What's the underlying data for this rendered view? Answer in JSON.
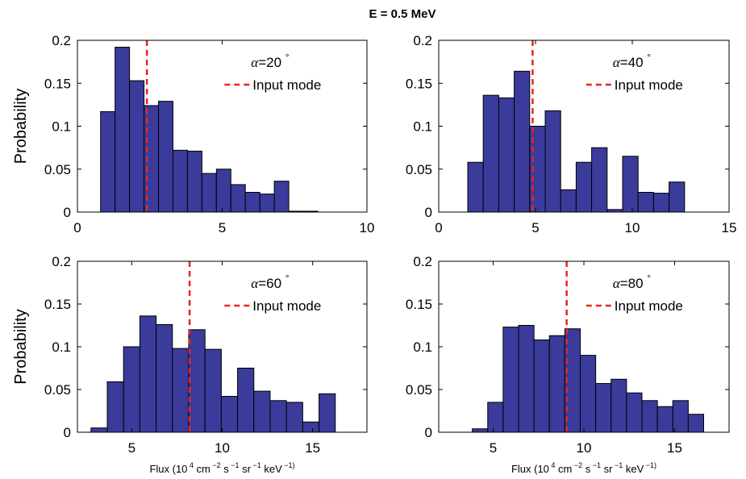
{
  "figure_title": "E = 0.5 MeV",
  "colors": {
    "bar_fill": "#3b3b9b",
    "bar_edge": "#000000",
    "mode_line": "#e8251f"
  },
  "chart_data": [
    {
      "type": "bar",
      "panel": "top-left",
      "ylabel": "Probability",
      "xlabel": "",
      "xlim": [
        0,
        10
      ],
      "ylim": [
        0,
        0.2
      ],
      "xticks": [
        "0",
        "5",
        "10"
      ],
      "yticks": [
        "0",
        "0.05",
        "0.1",
        "0.15",
        "0.2"
      ],
      "bin_edges": [
        0.8,
        1.3,
        1.8,
        2.3,
        2.8,
        3.3,
        3.8,
        4.3,
        4.8,
        5.3,
        5.8,
        6.3,
        6.8,
        7.3,
        7.8,
        8.3
      ],
      "values": [
        0.117,
        0.192,
        0.153,
        0.124,
        0.129,
        0.072,
        0.071,
        0.045,
        0.05,
        0.032,
        0.023,
        0.021,
        0.036,
        0.001,
        0.001
      ],
      "mode_x": 2.4,
      "legend_alpha": "20",
      "legend_label": "Input mode",
      "grid": false,
      "legend_position": "top-right"
    },
    {
      "type": "bar",
      "panel": "top-right",
      "ylabel": "",
      "xlabel": "",
      "xlim": [
        0,
        15
      ],
      "ylim": [
        0,
        0.2
      ],
      "xticks": [
        "0",
        "5",
        "10",
        "15"
      ],
      "yticks": [
        "0",
        "0.05",
        "0.1",
        "0.15",
        "0.2"
      ],
      "bin_edges": [
        1.5,
        2.3,
        3.1,
        3.9,
        4.7,
        5.5,
        6.3,
        7.1,
        7.9,
        8.7,
        9.5,
        10.3,
        11.1,
        11.9,
        12.7
      ],
      "values": [
        0.058,
        0.136,
        0.133,
        0.164,
        0.1,
        0.118,
        0.026,
        0.058,
        0.075,
        0.003,
        0.065,
        0.023,
        0.022,
        0.035
      ],
      "mode_x": 4.85,
      "legend_alpha": "40",
      "legend_label": "Input mode",
      "grid": false,
      "legend_position": "top-right"
    },
    {
      "type": "bar",
      "panel": "bottom-left",
      "ylabel": "Probability",
      "xlabel": "Flux (10 4 cm −2 s −1 sr −1 keV −1)",
      "xlim": [
        2,
        18
      ],
      "ylim": [
        0,
        0.2
      ],
      "xticks": [
        "5",
        "10",
        "15"
      ],
      "xtick_values": [
        5,
        10,
        15
      ],
      "yticks": [
        "0",
        "0.05",
        "0.1",
        "0.15",
        "0.2"
      ],
      "bin_edges": [
        2.75,
        3.65,
        4.55,
        5.45,
        6.35,
        7.25,
        8.15,
        9.05,
        9.95,
        10.85,
        11.75,
        12.65,
        13.55,
        14.45,
        15.35,
        16.25
      ],
      "values": [
        0.005,
        0.059,
        0.1,
        0.136,
        0.126,
        0.098,
        0.12,
        0.097,
        0.042,
        0.075,
        0.048,
        0.037,
        0.035,
        0.012,
        0.045
      ],
      "mode_x": 8.2,
      "legend_alpha": "60",
      "legend_label": "Input mode",
      "grid": false,
      "legend_position": "top-right"
    },
    {
      "type": "bar",
      "panel": "bottom-right",
      "ylabel": "",
      "xlabel": "Flux (10 4 cm −2 s −1 sr −1 keV −1)",
      "xlim": [
        2,
        18
      ],
      "ylim": [
        0,
        0.2
      ],
      "xticks": [
        "5",
        "10",
        "15"
      ],
      "xtick_values": [
        5,
        10,
        15
      ],
      "yticks": [
        "0",
        "0.05",
        "0.1",
        "0.15",
        "0.2"
      ],
      "bin_edges": [
        3.85,
        4.7,
        5.55,
        6.4,
        7.25,
        8.1,
        8.95,
        9.8,
        10.65,
        11.5,
        12.35,
        13.2,
        14.05,
        14.9,
        15.75,
        16.6
      ],
      "values": [
        0.004,
        0.035,
        0.123,
        0.125,
        0.108,
        0.113,
        0.121,
        0.09,
        0.057,
        0.062,
        0.046,
        0.037,
        0.03,
        0.037,
        0.021
      ],
      "mode_x": 9.05,
      "legend_alpha": "80",
      "legend_label": "Input mode",
      "grid": false,
      "legend_position": "top-right"
    }
  ]
}
